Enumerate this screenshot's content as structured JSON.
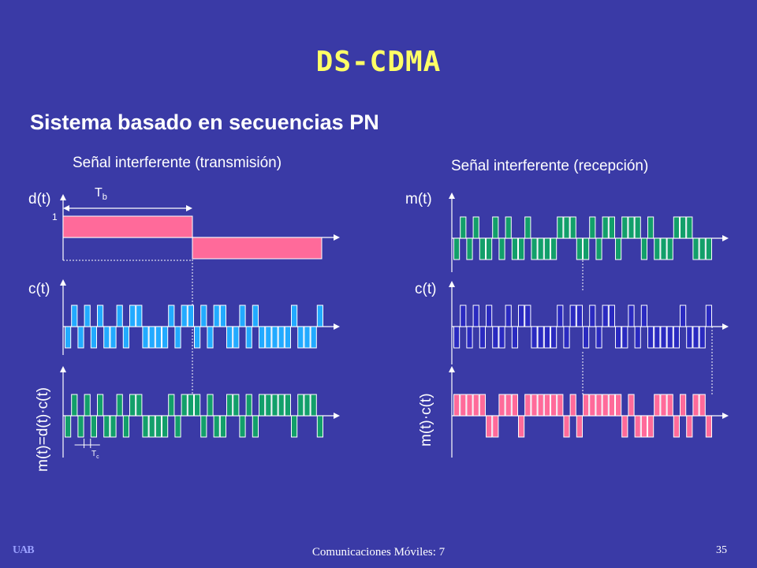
{
  "slide": {
    "title": "DS-CDMA",
    "subtitle": "Sistema basado en secuencias PN",
    "footer": "Comunicaciones Móviles: 7",
    "page_number": "35",
    "logo_text": "UAB"
  },
  "left_panel": {
    "caption": "Señal interferente (transmisión)",
    "labels": {
      "d": "d(t)",
      "c": "c(t)",
      "m": "m(t)=d(t)·c(t)",
      "tb_main": "T",
      "tb_sub": "b",
      "tc_main": "T",
      "tc_sub": "c",
      "level_one": "1"
    }
  },
  "right_panel": {
    "caption": "Señal interferente (recepción)",
    "labels": {
      "m": "m(t)",
      "c": "c(t)",
      "mc": "m(t)·c(t)"
    }
  },
  "signals": {
    "data_bits": [
      1,
      -1
    ],
    "chips_per_bit": 20,
    "pn_chips": [
      -1,
      1,
      -1,
      1,
      -1,
      1,
      -1,
      -1,
      1,
      -1,
      1,
      1,
      -1,
      -1,
      -1,
      -1,
      1,
      -1,
      1,
      1,
      -1,
      1,
      -1,
      1,
      1,
      -1,
      -1,
      1,
      -1,
      1,
      -1,
      -1,
      -1,
      -1,
      -1,
      1,
      -1,
      -1,
      -1,
      1
    ],
    "interference_chips": [
      -1,
      1,
      -1,
      1,
      -1,
      -1,
      1,
      -1,
      1,
      -1,
      -1,
      1,
      -1,
      -1,
      -1,
      -1,
      1,
      1,
      1,
      -1,
      -1,
      1,
      -1,
      1,
      1,
      -1,
      1,
      1,
      1,
      -1,
      1,
      -1,
      -1,
      -1,
      1,
      1,
      1,
      -1,
      -1,
      -1
    ],
    "colors": {
      "pink": "#ff6a9a",
      "cyan": "#22aaff",
      "green": "#129f6a",
      "navy": "#2a2ac0",
      "outline": "#ffffff"
    }
  }
}
